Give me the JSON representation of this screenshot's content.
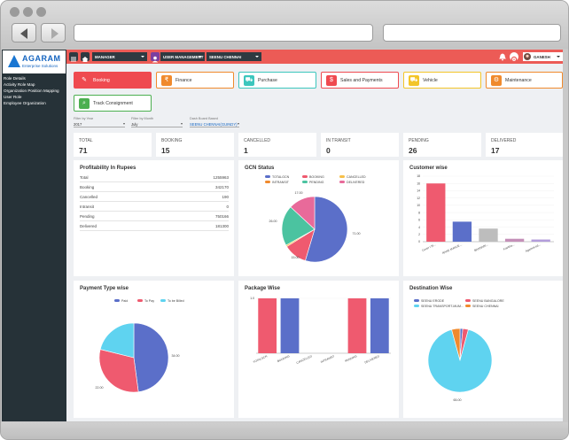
{
  "topbar": {
    "manager": "MANAGER",
    "user_management": "USER MANAGEMENT",
    "branch": "SEENU CHENNAI",
    "user": "GANESH"
  },
  "logo": {
    "name": "AGARAM",
    "tagline": "Enterprise Solutions"
  },
  "sidebar": {
    "items": [
      {
        "label": "Role Details"
      },
      {
        "label": "Activity Role Map"
      },
      {
        "label": "Organization Position Mapping"
      },
      {
        "label": "User Role"
      },
      {
        "label": "Employee Organization"
      }
    ]
  },
  "tiles": [
    {
      "label": "Booking",
      "color": "#ef4a50"
    },
    {
      "label": "Finance",
      "color": "#f08a2d"
    },
    {
      "label": "Purchase",
      "color": "#3cc6bd"
    },
    {
      "label": "Sales and Payments",
      "color": "#ef4a50"
    },
    {
      "label": "Vehicle",
      "color": "#f3c529"
    },
    {
      "label": "Maintenance",
      "color": "#f08a2d"
    },
    {
      "label": "Track Consignment",
      "color": "#4caf50"
    }
  ],
  "filters": {
    "year_label": "Filter by Year",
    "year_value": "2017",
    "month_label": "Filter by Month",
    "month_value": "July",
    "branch_label": "Dash Board Based",
    "branch_value": "SEENU CHENNAI(GUINDY)"
  },
  "stats": [
    {
      "label": "TOTAL",
      "value": "71"
    },
    {
      "label": "BOOKING",
      "value": "15"
    },
    {
      "label": "CANCELLED",
      "value": "1"
    },
    {
      "label": "IN TRANSIT",
      "value": "0"
    },
    {
      "label": "PENDING",
      "value": "26"
    },
    {
      "label": "DELIVERED",
      "value": "17"
    }
  ],
  "profitability": {
    "title": "Profitability In Rupees",
    "rows": [
      {
        "label": "Total",
        "value": "1255963"
      },
      {
        "label": "Booking",
        "value": "342170"
      },
      {
        "label": "Cancelled",
        "value": "190"
      },
      {
        "label": "Intransit",
        "value": "0"
      },
      {
        "label": "Pending",
        "value": "750166"
      },
      {
        "label": "Delivered",
        "value": "181300"
      }
    ]
  },
  "chart_data": [
    {
      "type": "pie",
      "title": "GCN Status",
      "legend": [
        "TOTALGCN",
        "BOOKING",
        "CANCELLED",
        "INTRANSIT",
        "PENDING",
        "DELIVERED"
      ],
      "colors": [
        "#5b6fc9",
        "#ef5a6f",
        "#f7c04a",
        "#f08a2d",
        "#4bc3a0",
        "#e86a9a"
      ],
      "slices": [
        {
          "label": "TOTALGCN",
          "value": 71,
          "color": "#5b6fc9"
        },
        {
          "label": "BOOKING",
          "value": 15,
          "color": "#ef5a6f"
        },
        {
          "label": "CANCELLED",
          "value": 1,
          "color": "#f7c04a"
        },
        {
          "label": "INTRANSIT",
          "value": 0,
          "color": "#f08a2d"
        },
        {
          "label": "PENDING",
          "value": 26,
          "color": "#4bc3a0"
        },
        {
          "label": "DELIVERED",
          "value": 17,
          "color": "#e86a9a"
        }
      ],
      "data_labels": [
        "71.00",
        "15.00",
        "26.00",
        "17.00"
      ]
    },
    {
      "type": "bar",
      "title": "Customer wise",
      "categories": [
        "Cover I Si...",
        "RANE MANUE...",
        "BANNARI...",
        "Kavitha...",
        "Agarwal ed..."
      ],
      "values": [
        16,
        5.5,
        3.6,
        0.8,
        0.6
      ],
      "colors": [
        "#ef5a6f",
        "#5b6fc9",
        "#bdbdbd",
        "#c48fb8",
        "#b39ddb"
      ],
      "yticks": [
        "0",
        "2",
        "4",
        "6",
        "8",
        "10",
        "12",
        "14",
        "16",
        "18"
      ],
      "ylim": [
        0,
        18
      ]
    },
    {
      "type": "pie",
      "title": "Payment Type wise",
      "legend": [
        "Paid",
        "To Pay",
        "To be Billed"
      ],
      "colors": [
        "#5b6fc9",
        "#ef5a6f",
        "#5fd3f0"
      ],
      "slices": [
        {
          "label": "Paid",
          "value": 34,
          "color": "#5b6fc9"
        },
        {
          "label": "To Pay",
          "value": 22,
          "color": "#ef5a6f"
        },
        {
          "label": "To be Billed",
          "value": 15,
          "color": "#5fd3f0"
        }
      ],
      "data_labels": [
        "34.00",
        "22.00"
      ]
    },
    {
      "type": "bar",
      "title": "Package Wise",
      "categories": [
        "TOTALGCN",
        "BOOKING",
        "CANCELLED",
        "INTRANSIT",
        "PENDING",
        "DELIVERED"
      ],
      "values": [
        1,
        1,
        0,
        0,
        1,
        1
      ],
      "colors": [
        "#ef5a6f",
        "#5b6fc9",
        "#ef5a6f",
        "#5b6fc9",
        "#ef5a6f",
        "#5b6fc9"
      ],
      "yticks": [
        "1.0"
      ],
      "ylim": [
        0,
        1
      ]
    },
    {
      "type": "pie",
      "title": "Destination Wise",
      "legend": [
        "SEENU ERODE",
        "SEENU BANGALORE",
        "SEENU TRANSPORT-MUM...",
        "SEENU CHENNAI"
      ],
      "colors": [
        "#5b6fc9",
        "#ef5a6f",
        "#5fd3f0",
        "#f08a2d"
      ],
      "slices": [
        {
          "label": "SEENU ERODE",
          "value": 1,
          "color": "#5b6fc9"
        },
        {
          "label": "SEENU BANGALORE",
          "value": 2,
          "color": "#ef5a6f"
        },
        {
          "label": "SEENU TRANSPORT-MUM...",
          "value": 65,
          "color": "#5fd3f0"
        },
        {
          "label": "SEENU CHENNAI",
          "value": 3,
          "color": "#f08a2d"
        }
      ],
      "data_labels": [
        "65.00"
      ]
    }
  ]
}
